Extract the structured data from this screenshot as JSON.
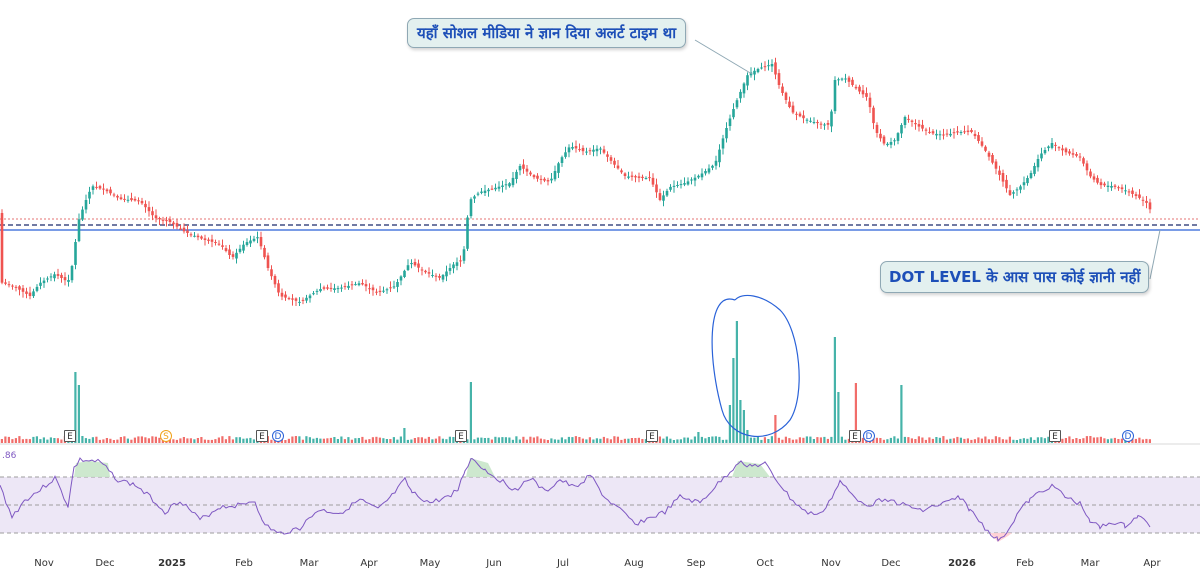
{
  "annotations": {
    "top": "यहाँ सोशल मीडिया ने ज्ञान दिया अलर्ट टाइम था",
    "bottom": "DOT LEVEL के आस पास कोई ज्ञानी नहीं"
  },
  "rsi_value_label": ".86",
  "x_axis_months": [
    {
      "label": "Nov",
      "bold": false
    },
    {
      "label": "Dec",
      "bold": false
    },
    {
      "label": "2025",
      "bold": true
    },
    {
      "label": "Feb",
      "bold": false
    },
    {
      "label": "Mar",
      "bold": false
    },
    {
      "label": "Apr",
      "bold": false
    },
    {
      "label": "May",
      "bold": false
    },
    {
      "label": "Jun",
      "bold": false
    },
    {
      "label": "Jul",
      "bold": false
    },
    {
      "label": "Aug",
      "bold": false
    },
    {
      "label": "Sep",
      "bold": false
    },
    {
      "label": "Oct",
      "bold": false
    },
    {
      "label": "Nov",
      "bold": false
    },
    {
      "label": "Dec",
      "bold": false
    },
    {
      "label": "2026",
      "bold": true
    },
    {
      "label": "Feb",
      "bold": false
    },
    {
      "label": "Mar",
      "bold": false
    },
    {
      "label": "Apr",
      "bold": false
    }
  ],
  "event_markers": [
    {
      "type": "E",
      "month": "Nov"
    },
    {
      "type": "S",
      "month": "2025"
    },
    {
      "type": "E",
      "month": "Feb"
    },
    {
      "type": "D",
      "month": "Feb"
    },
    {
      "type": "E",
      "month": "May"
    },
    {
      "type": "E",
      "month": "Aug"
    },
    {
      "type": "E",
      "month": "Nov"
    },
    {
      "type": "D",
      "month": "Nov"
    },
    {
      "type": "E",
      "month": "Feb"
    },
    {
      "type": "D",
      "month": "Mar"
    }
  ],
  "colors": {
    "up": "#26a69a",
    "down": "#ef5350",
    "rsi_line": "#7e57c2",
    "rsi_band": "#ede7f6",
    "support_line": "#2a62d8",
    "support_dash": "#1a2a6c",
    "resistance_dot": "#e57373",
    "annotation_text": "#1d4fb8",
    "annotation_bg": "#e3f0ef"
  },
  "chart_data": {
    "type": "candlestick",
    "title": "",
    "ylabel": "",
    "price_axis_visible": false,
    "x": [
      "Nov",
      "Dec",
      "2025",
      "Feb",
      "Mar",
      "Apr",
      "May",
      "Jun",
      "Jul",
      "Aug",
      "Sep",
      "Oct",
      "Nov",
      "Dec",
      "2026",
      "Feb",
      "Mar",
      "Apr"
    ],
    "close_relative": [
      20,
      21,
      42,
      39,
      35,
      34,
      30,
      21,
      19,
      22,
      21,
      20,
      26,
      38,
      40,
      62,
      78,
      80,
      74,
      68,
      60,
      46,
      51,
      57,
      66,
      69,
      73,
      80,
      84,
      86,
      82,
      85,
      86,
      84,
      79,
      76,
      70,
      66,
      63,
      60,
      62,
      58,
      55,
      49,
      45,
      42,
      36,
      32,
      28,
      38,
      45,
      46,
      44,
      36,
      26,
      18,
      14
    ],
    "support_line": "solid blue horizontal",
    "horizontal_levels": [
      "dotted red",
      "dashed navy",
      "solid blue"
    ],
    "volume_spikes": [
      "Nov (E)",
      "May (E)",
      "Sep-Oct (circled)",
      "Nov (E)",
      "Nov-Dec"
    ],
    "rsi": {
      "upper": 70,
      "middle": 50,
      "lower": 30,
      "overbought_at": [
        "Nov",
        "May",
        "Sep"
      ],
      "oversold_at": [
        "Jan 2026"
      ]
    },
    "legend": "none",
    "grid": false
  }
}
